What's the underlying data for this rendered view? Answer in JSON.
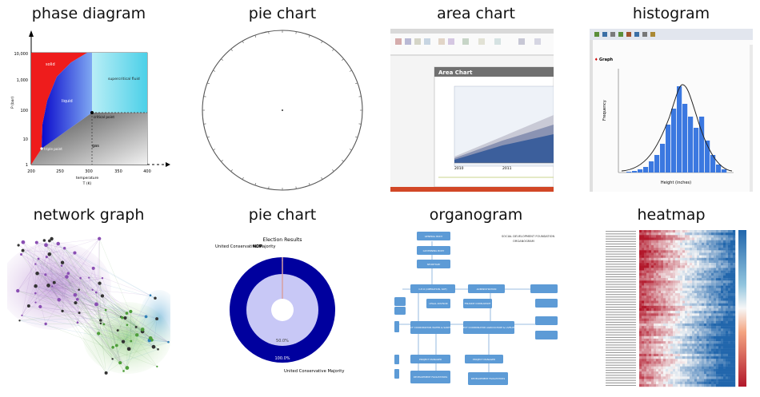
{
  "cells": [
    {
      "title": "phase diagram",
      "image": {
        "y_ticks": [
          "10,000",
          "1,000",
          "100",
          "10",
          "1"
        ],
        "x_ticks": [
          "200",
          "250",
          "300",
          "350",
          "400"
        ],
        "y_label": "P (bar)",
        "x_label_1": "temperature",
        "x_label_2": "T (K)",
        "regions": [
          "solid",
          "liquid",
          "supercritical fluid",
          "gas"
        ],
        "points": [
          "critical point",
          "triple point"
        ]
      }
    },
    {
      "title": "pie chart",
      "image": {}
    },
    {
      "title": "area chart",
      "image": {
        "header": "Area Chart",
        "x_ticks": [
          "2010",
          "2011"
        ]
      }
    },
    {
      "title": "histogram",
      "image": {
        "legend": "Graph",
        "y_label": "Frequency",
        "x_label": "Height (inches)"
      }
    },
    {
      "title": "network graph",
      "image": {}
    },
    {
      "title": "pie chart",
      "image": {
        "chart_title": "Election Results",
        "top_label": "United Conservative Majority",
        "top_label_pre": "NDP",
        "inner_pct": "50.0%",
        "outer_pct": "100.0%",
        "bottom_label": "United Conservative Majority"
      }
    },
    {
      "title": "organogram",
      "image": {
        "org_title_1": "SOCIAL DEVELOPMENT FOUNDATION",
        "org_title_2": "ORGANOGRAM",
        "boxes": [
          "GENERAL BODY",
          "GOVERNING BODY",
          "SECRETARY",
          "C.E.O (OPERATION, SDF)",
          "ADMINISTRATION",
          "LEGAL ADVISOR",
          "FINANCE CONSULTANT",
          "PROJECT COORDINATOR WATER & SANITATION",
          "PROJECT COORDINATOR AGRICULTURE & LIVELIHOOD",
          "PROJECT MANAGER",
          "PROJECT MANAGER",
          "DEVELOPMENT FACILITATORS",
          "DEVELOPMENT FACILITATORS"
        ]
      }
    },
    {
      "title": "heatmap",
      "image": {}
    }
  ],
  "colors": {
    "phase_solid": "#ee1c1c",
    "phase_liquid": "#3b3bd6",
    "phase_super": "#5fd3e8",
    "phase_gas": "#9a9a9a",
    "donut_outer": "#00009e",
    "donut_inner": "#c8c8f6",
    "area_blue": "#3c5f9c",
    "hist_bar": "#3b78e0",
    "org_box": "#5d9bd6"
  }
}
